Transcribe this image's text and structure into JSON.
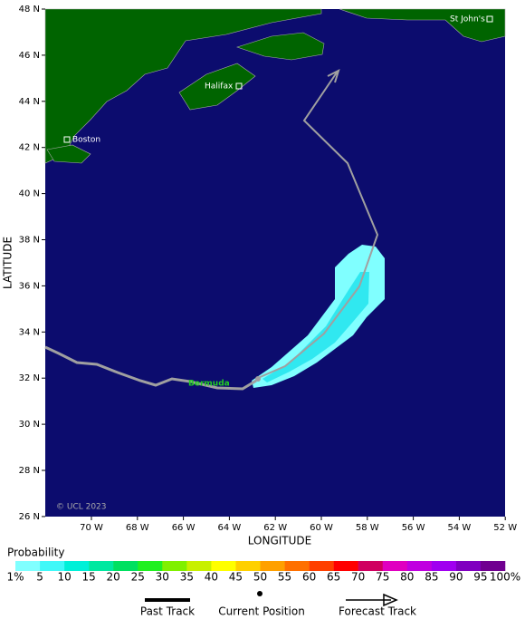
{
  "map": {
    "lat_labels": [
      "48 N",
      "46 N",
      "44 N",
      "42 N",
      "40 N",
      "38 N",
      "36 N",
      "34 N",
      "32 N",
      "30 N",
      "28 N",
      "26 N"
    ],
    "lon_labels": [
      "70 W",
      "68 W",
      "66 W",
      "64 W",
      "62 W",
      "60 W",
      "58 W",
      "56 W",
      "54 W",
      "52 W"
    ],
    "y_axis_title": "LATITUDE",
    "x_axis_title": "LONGITUDE",
    "places": [
      "St John's",
      "Halifax",
      "Boston",
      "Bermuda"
    ],
    "copyright": "© UCL 2023"
  },
  "legend": {
    "title": "Probability",
    "scale": [
      "1%",
      "5",
      "10",
      "15",
      "20",
      "25",
      "30",
      "35",
      "40",
      "45",
      "50",
      "55",
      "60",
      "65",
      "70",
      "75",
      "80",
      "85",
      "90",
      "95",
      "100%"
    ],
    "items": [
      "Past Track",
      "Current Position",
      "Forecast Track"
    ]
  }
}
